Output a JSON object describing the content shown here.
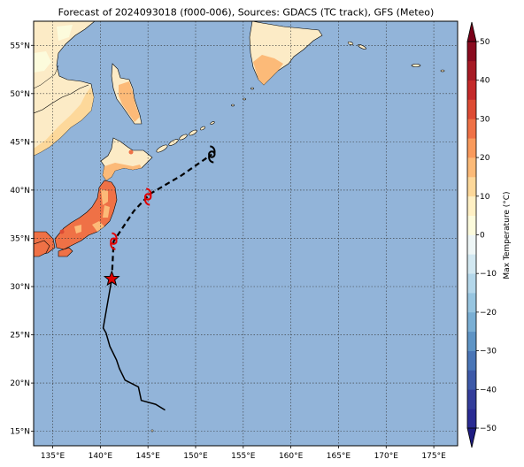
{
  "title": "Forecast of 2024093018 (f000-006), Sources: GDACS (TC track), GFS (Meteo)",
  "map": {
    "lon_range": [
      133,
      177.5
    ],
    "lat_range": [
      13.5,
      57.5
    ],
    "lon_ticks": [
      135,
      140,
      145,
      150,
      155,
      160,
      165,
      170,
      175
    ],
    "lat_ticks": [
      15,
      20,
      25,
      30,
      35,
      40,
      45,
      50,
      55
    ],
    "lon_labels": [
      "135°E",
      "140°E",
      "145°E",
      "150°E",
      "155°E",
      "160°E",
      "165°E",
      "170°E",
      "175°E"
    ],
    "lat_labels": [
      "15°N",
      "20°N",
      "25°N",
      "30°N",
      "35°N",
      "40°N",
      "45°N",
      "50°N",
      "55°N"
    ],
    "grid": true,
    "ocean_color": "#92b4d9"
  },
  "track": {
    "past": [
      [
        146.8,
        17.2
      ],
      [
        145.8,
        17.8
      ],
      [
        144.3,
        18.2
      ],
      [
        144.0,
        19.6
      ],
      [
        142.6,
        20.3
      ],
      [
        142.0,
        21.5
      ],
      [
        141.7,
        22.4
      ],
      [
        141.0,
        23.8
      ],
      [
        140.6,
        25.2
      ],
      [
        140.3,
        25.7
      ],
      [
        141.2,
        30.8
      ]
    ],
    "forecast": [
      [
        141.2,
        30.8
      ],
      [
        141.4,
        34.7
      ],
      [
        143.5,
        37.8
      ],
      [
        145.2,
        39.6
      ],
      [
        148.5,
        41.5
      ],
      [
        151.7,
        43.7
      ]
    ],
    "current": [
      141.2,
      30.8
    ],
    "forecast_symbols": [
      {
        "lon": 141.4,
        "lat": 34.7,
        "color": "#e00000"
      },
      {
        "lon": 145.0,
        "lat": 39.3,
        "color": "#e00000"
      },
      {
        "lon": 151.7,
        "lat": 43.7,
        "color": "#000000"
      }
    ]
  },
  "colorbar": {
    "label": "Max Temperature (°C)",
    "levels": [
      -50,
      -45,
      -40,
      -35,
      -30,
      -25,
      -20,
      -15,
      -10,
      -5,
      0,
      5,
      10,
      15,
      20,
      25,
      30,
      35,
      40,
      45,
      50
    ],
    "tick_labels": [
      "50",
      "40",
      "30",
      "20",
      "10",
      "0",
      "−10",
      "−20",
      "−30",
      "−40",
      "−50"
    ],
    "colors": [
      "#2a2b93",
      "#333d9a",
      "#3d59a8",
      "#4a76b7",
      "#5e94c5",
      "#7aafd4",
      "#97c5e0",
      "#b4d7ea",
      "#d2e8f1",
      "#eef6f6",
      "#fcfbdc",
      "#fff0c4",
      "#fdd89a",
      "#fcba78",
      "#f99a5c",
      "#ef7146",
      "#dd4b34",
      "#c42a2a",
      "#a61a24",
      "#8a0b1f"
    ],
    "extend_low": "#1e1c82",
    "extend_high": "#7a0019"
  }
}
